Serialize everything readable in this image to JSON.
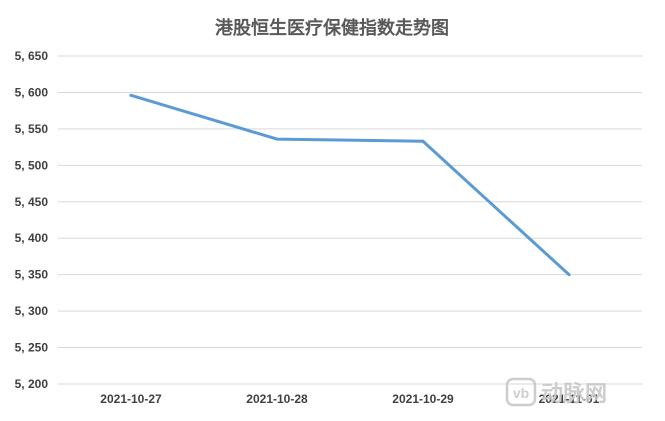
{
  "chart_data": {
    "type": "line",
    "title": "港股恒生医疗保健指数走势图",
    "xlabel": "",
    "ylabel": "",
    "categories": [
      "2021-10-27",
      "2021-10-28",
      "2021-10-29",
      "2021-11-01"
    ],
    "series": [
      {
        "values": [
          5596,
          5536,
          5533,
          5350
        ]
      }
    ],
    "ylim": [
      5200,
      5650
    ],
    "yticks": [
      5200,
      5250,
      5300,
      5350,
      5400,
      5450,
      5500,
      5550,
      5600,
      5650
    ],
    "ytick_labels": [
      "5, 200",
      "5, 250",
      "5, 300",
      "5, 350",
      "5, 400",
      "5, 450",
      "5, 500",
      "5, 550",
      "5, 600",
      "5, 650"
    ],
    "grid": true,
    "legend": "none",
    "colors": {
      "line": "#5b9bd5",
      "grid": "#d9d9d9",
      "watermark": "#c8c8c8"
    }
  },
  "watermark": {
    "text": "动脉网",
    "logo_icon": "vb-logo-icon"
  }
}
